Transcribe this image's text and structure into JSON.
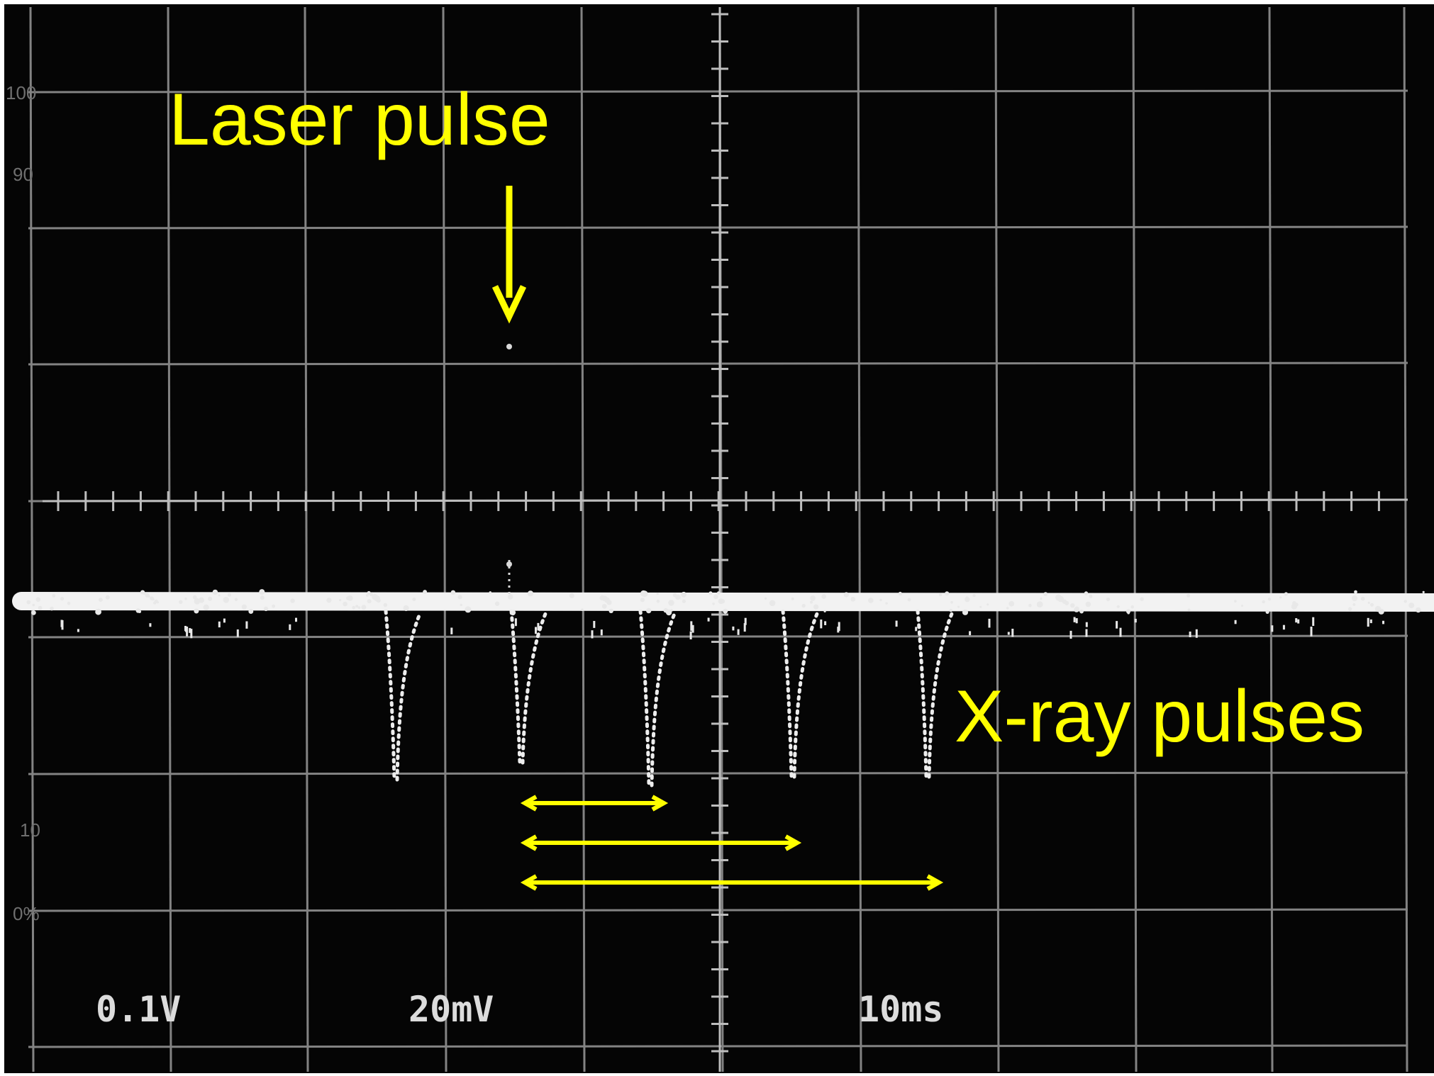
{
  "annotations": {
    "laser_label": "Laser pulse",
    "xray_label": "X-ray pulses",
    "annotation_color": "#ffff00"
  },
  "scope_readout": {
    "ch1_scale": "0.1V",
    "ch2_scale": "20mV",
    "timebase": "10ms"
  },
  "graticule_marks": {
    "mark_100": "100",
    "mark_90": "90",
    "mark_10": "10",
    "mark_0": "0%"
  },
  "colors": {
    "screen": "#050505",
    "trace": "#f2f2f2",
    "grid": "#9a9a9a",
    "annotation": "#ffff00"
  }
}
